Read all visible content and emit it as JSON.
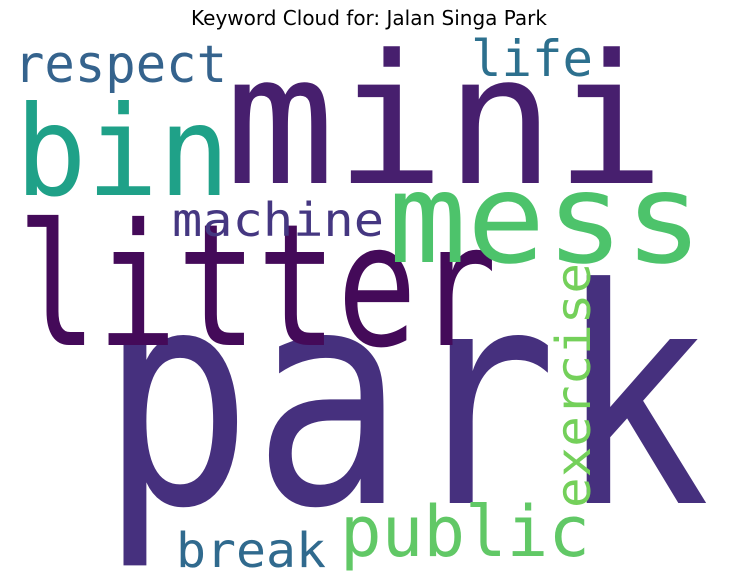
{
  "chart_data": {
    "type": "wordcloud",
    "title": "Keyword Cloud for: Jalan Singa Park",
    "words": [
      {
        "text": "park",
        "color": "#46307e"
      },
      {
        "text": "mini",
        "color": "#471f6e"
      },
      {
        "text": "litter",
        "color": "#440a59"
      },
      {
        "text": "mess",
        "color": "#4dc36b"
      },
      {
        "text": "bin",
        "color": "#1fa188"
      },
      {
        "text": "respect",
        "color": "#35638d"
      },
      {
        "text": "life",
        "color": "#2d708e"
      },
      {
        "text": "machine",
        "color": "#453781"
      },
      {
        "text": "exercise",
        "color": "#74d05a"
      },
      {
        "text": "public",
        "color": "#61c866"
      },
      {
        "text": "break",
        "color": "#306a8e"
      }
    ]
  }
}
